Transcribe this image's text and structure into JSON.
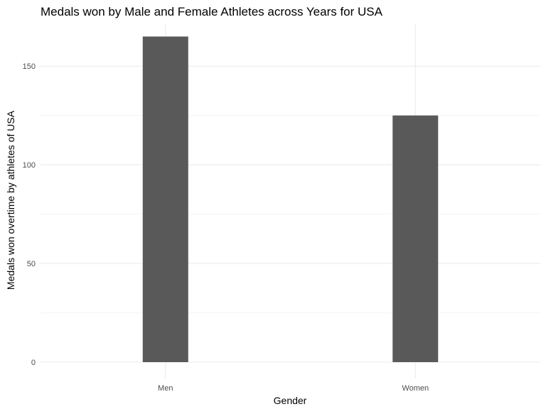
{
  "chart_data": {
    "type": "bar",
    "title": "Medals won by Male and Female Athletes across Years for USA",
    "xlabel": "Gender",
    "ylabel": "Medals won overtime by athletes of USA",
    "categories": [
      "Men",
      "Women"
    ],
    "values": [
      165,
      125
    ],
    "ylim": [
      0,
      172
    ],
    "yticks": [
      0,
      50,
      100,
      150
    ],
    "y_minor_ticks": [
      25,
      75,
      125
    ],
    "grid": true,
    "legend": "none",
    "bar_color": "#595959",
    "grid_color": "#ebebeb"
  }
}
